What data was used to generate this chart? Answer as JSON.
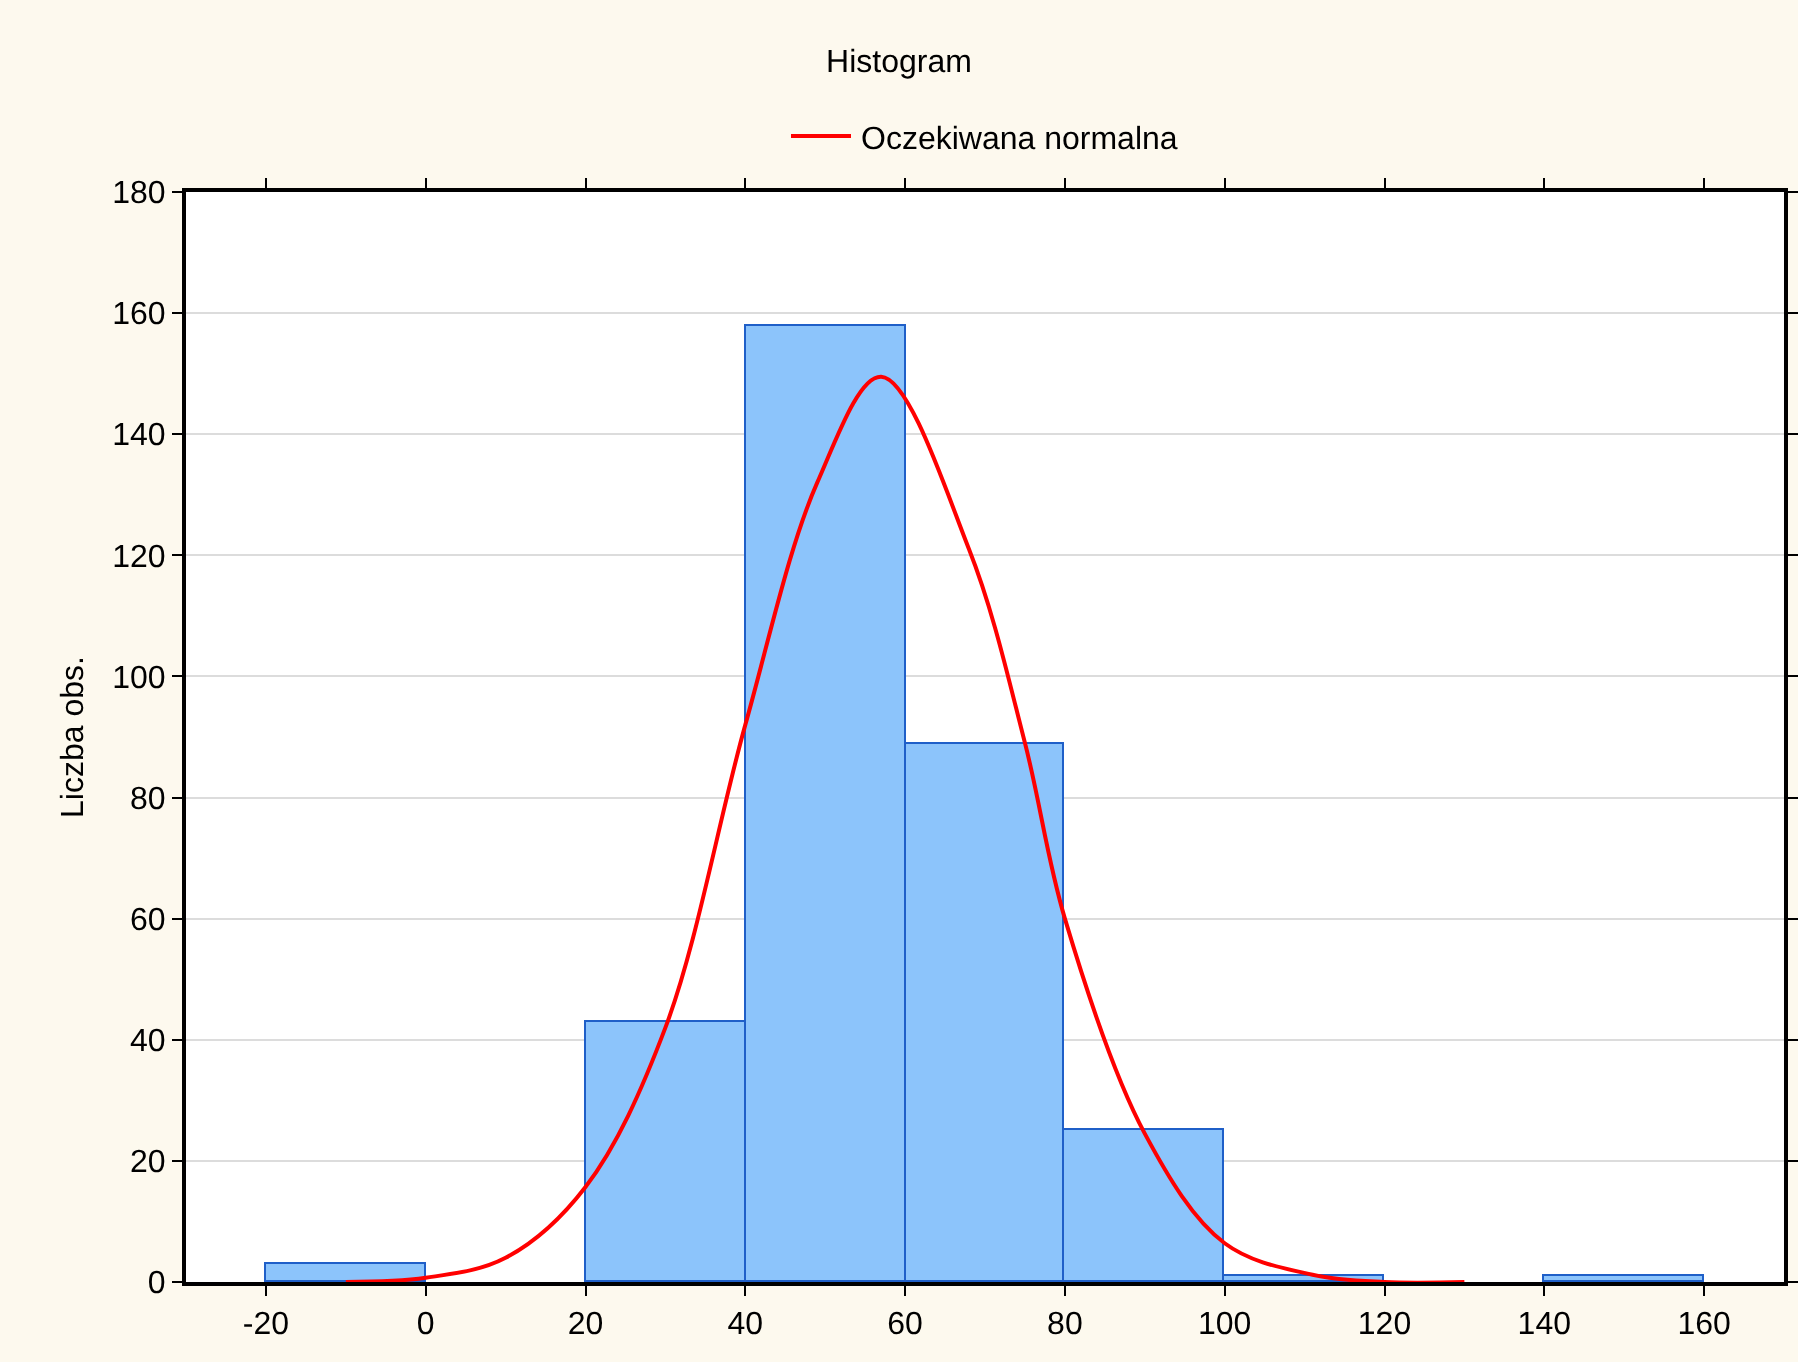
{
  "chart_data": {
    "type": "histogram",
    "title": "Histogram",
    "ylabel": "Liczba obs.",
    "bins": [
      -20,
      0,
      20,
      40,
      60,
      80,
      100,
      120,
      140,
      160
    ],
    "values": [
      3,
      0,
      43,
      158,
      89,
      25,
      1,
      0,
      1
    ],
    "color": "#8cc4fb",
    "series": [
      {
        "type": "line",
        "name": "Oczekiwana normalna",
        "color": "#ff0000",
        "x": [
          -10,
          0,
          10,
          20,
          30,
          40,
          49,
          57,
          68,
          75,
          80,
          90,
          100,
          111,
          120,
          130
        ],
        "values": [
          0,
          0.7,
          4,
          15.7,
          42,
          92,
          132,
          149.5,
          121,
          89,
          60,
          24.5,
          6.4,
          1.2,
          0,
          0
        ]
      }
    ],
    "xlim": [
      -30,
      170
    ],
    "xticks": [
      -20,
      0,
      20,
      40,
      60,
      80,
      100,
      120,
      140,
      160
    ],
    "ylim": [
      0,
      180
    ],
    "yticks": [
      0,
      20,
      40,
      60,
      80,
      100,
      120,
      140,
      160,
      180
    ],
    "grid": "y",
    "legend": "top"
  }
}
